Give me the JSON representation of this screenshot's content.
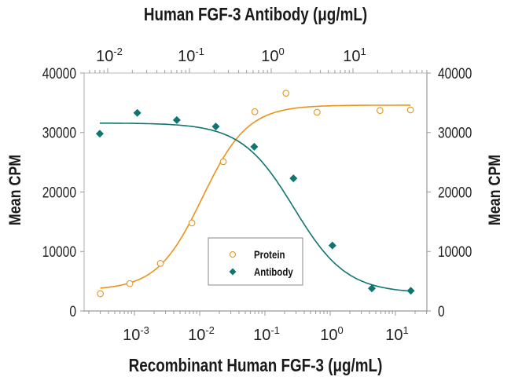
{
  "chart_data": {
    "type": "scatter",
    "title_top_axis": "Human FGF-3 Antibody (μg/mL)",
    "title_bottom_axis": "Recombinant Human FGF-3 (μg/mL)",
    "ylabel_left": "Mean CPM",
    "ylabel_right": "Mean CPM",
    "ylim": [
      0,
      40000
    ],
    "y_ticks": [
      "0",
      "10000",
      "20000",
      "30000",
      "40000"
    ],
    "x_bottom": {
      "scale": "log",
      "label": "Recombinant Human FGF-3 (μg/mL)",
      "ticks": [
        {
          "base": "10",
          "exp": "-3"
        },
        {
          "base": "10",
          "exp": "-2"
        },
        {
          "base": "10",
          "exp": "-1"
        },
        {
          "base": "10",
          "exp": "0"
        },
        {
          "base": "10",
          "exp": "1"
        }
      ]
    },
    "x_top": {
      "scale": "log",
      "label": "Human FGF-3 Antibody (μg/mL)",
      "ticks": [
        {
          "base": "10",
          "exp": "-2"
        },
        {
          "base": "10",
          "exp": "-1"
        },
        {
          "base": "10",
          "exp": "0"
        },
        {
          "base": "10",
          "exp": "1"
        }
      ]
    },
    "legend": {
      "position": "center-bottom",
      "entries": [
        {
          "label": "Protein",
          "marker": "open-circle",
          "color": "#E8941C"
        },
        {
          "label": "Antibody",
          "marker": "filled-diamond",
          "color": "#0E7570"
        }
      ]
    },
    "series": [
      {
        "name": "Protein",
        "axis": "bottom",
        "color": "#E8941C",
        "x": [
          0.0003,
          0.00085,
          0.0025,
          0.0076,
          0.023,
          0.07,
          0.21,
          0.63,
          5.8,
          17
        ],
        "y": [
          2900,
          4600,
          8000,
          14800,
          25100,
          33500,
          36600,
          33400,
          33700,
          33800
        ]
      },
      {
        "name": "Antibody",
        "axis": "top",
        "color": "#0E7570",
        "x": [
          0.008,
          0.023,
          0.07,
          0.21,
          0.62,
          1.87,
          5.6,
          17,
          51
        ],
        "y": [
          29800,
          33300,
          32100,
          31000,
          27600,
          22300,
          11000,
          3800,
          3400
        ]
      }
    ]
  },
  "colors": {
    "protein": "#E8941C",
    "antibody": "#0E7570",
    "axis": "#9a9a9a"
  }
}
